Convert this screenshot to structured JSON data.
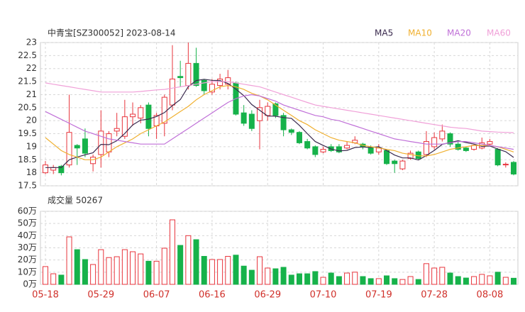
{
  "chart_data": {
    "type": "candlestick",
    "title": "中青宝[SZ300052] 2023-08-14",
    "categories": [
      "05-18",
      null,
      null,
      null,
      null,
      null,
      null,
      "05-29",
      null,
      null,
      null,
      null,
      null,
      null,
      "06-07",
      null,
      null,
      null,
      null,
      null,
      null,
      "06-16",
      null,
      null,
      null,
      null,
      null,
      null,
      "06-29",
      null,
      null,
      null,
      null,
      null,
      null,
      "07-10",
      null,
      null,
      null,
      null,
      null,
      null,
      "07-19",
      null,
      null,
      null,
      null,
      null,
      null,
      "07-28",
      null,
      null,
      null,
      null,
      null,
      null,
      "08-08",
      null,
      null,
      null
    ],
    "open": [
      18.0,
      18.1,
      18.25,
      18.3,
      19.05,
      19.3,
      18.35,
      18.7,
      18.8,
      19.6,
      19.4,
      20.15,
      20.1,
      20.6,
      19.8,
      19.9,
      20.6,
      21.7,
      21.35,
      22.2,
      21.55,
      21.1,
      21.35,
      21.4,
      21.45,
      20.3,
      20.25,
      20.0,
      20.2,
      20.65,
      20.2,
      19.65,
      19.55,
      19.2,
      19.0,
      18.8,
      19.0,
      19.0,
      18.95,
      19.15,
      19.1,
      18.95,
      18.8,
      18.85,
      18.45,
      18.15,
      18.55,
      18.8,
      18.7,
      19.0,
      19.3,
      19.5,
      19.1,
      18.95,
      18.9,
      18.95,
      19.1,
      18.9,
      18.3,
      18.4
    ],
    "high": [
      18.45,
      18.3,
      18.3,
      21.0,
      19.1,
      19.7,
      18.7,
      20.4,
      19.6,
      20.3,
      20.8,
      20.7,
      20.6,
      20.7,
      20.3,
      21.0,
      22.9,
      22.3,
      23.0,
      22.8,
      21.6,
      21.6,
      21.8,
      21.95,
      21.5,
      20.6,
      20.4,
      20.8,
      20.7,
      20.7,
      20.3,
      19.7,
      19.6,
      19.3,
      19.05,
      19.0,
      19.1,
      19.1,
      19.2,
      19.4,
      19.15,
      19.05,
      19.1,
      18.9,
      18.5,
      18.5,
      18.85,
      18.85,
      19.6,
      19.55,
      19.85,
      19.55,
      19.2,
      19.0,
      19.1,
      19.35,
      19.3,
      18.95,
      18.4,
      18.45
    ],
    "low": [
      17.95,
      17.95,
      17.9,
      18.2,
      18.3,
      18.6,
      18.05,
      18.2,
      18.6,
      19.4,
      19.3,
      19.8,
      19.9,
      19.4,
      19.3,
      19.4,
      20.4,
      21.3,
      21.2,
      21.3,
      21.0,
      21.0,
      21.2,
      21.2,
      20.2,
      19.8,
      19.6,
      18.9,
      20.0,
      20.1,
      19.4,
      19.45,
      19.1,
      18.9,
      18.6,
      18.75,
      18.8,
      18.75,
      18.9,
      19.1,
      18.9,
      18.7,
      18.7,
      18.3,
      18.0,
      18.1,
      18.5,
      18.5,
      18.6,
      18.9,
      19.2,
      19.0,
      18.85,
      18.8,
      18.85,
      18.9,
      19.05,
      18.25,
      18.2,
      17.9
    ],
    "close": [
      18.3,
      18.2,
      18.0,
      19.55,
      18.95,
      18.75,
      18.6,
      19.6,
      19.5,
      19.7,
      20.15,
      20.25,
      20.5,
      19.7,
      20.2,
      20.9,
      21.6,
      21.65,
      22.2,
      21.35,
      21.15,
      21.4,
      21.6,
      21.65,
      20.25,
      19.9,
      19.7,
      20.5,
      20.55,
      20.2,
      19.65,
      19.55,
      19.15,
      18.95,
      18.7,
      18.9,
      18.85,
      18.8,
      19.05,
      19.25,
      19.0,
      18.75,
      18.95,
      18.35,
      18.35,
      18.45,
      18.75,
      18.55,
      19.2,
      19.35,
      19.6,
      19.1,
      18.9,
      18.85,
      19.05,
      19.15,
      19.2,
      18.3,
      18.33,
      17.95
    ],
    "up_color": "#e8343c",
    "down_color": "#16b24a",
    "ylim": [
      17.5,
      23
    ],
    "yticks": [
      17.5,
      18,
      18.5,
      19,
      19.5,
      20,
      20.5,
      21,
      21.5,
      22,
      22.5,
      23
    ],
    "series": [
      {
        "name": "MA5",
        "color": "#3a2a4e",
        "values": [
          18.2,
          18.2,
          18.2,
          18.5,
          18.6,
          18.69,
          18.77,
          19.09,
          19.08,
          19.23,
          19.51,
          19.84,
          20.02,
          20.06,
          20.16,
          20.31,
          20.58,
          20.81,
          21.31,
          21.54,
          21.59,
          21.55,
          21.54,
          21.43,
          21.21,
          20.96,
          20.62,
          20.4,
          20.18,
          20.17,
          20.12,
          20.09,
          19.82,
          19.5,
          19.2,
          19.05,
          18.91,
          18.84,
          18.86,
          18.97,
          18.99,
          18.97,
          19.0,
          18.86,
          18.68,
          18.57,
          18.57,
          18.49,
          18.66,
          18.86,
          19.09,
          19.16,
          19.23,
          19.16,
          19.1,
          19.01,
          19.03,
          18.91,
          18.81,
          18.59
        ]
      },
      {
        "name": "MA10",
        "color": "#f0b030",
        "values": [
          19.35,
          19.1,
          18.85,
          18.7,
          18.6,
          18.5,
          18.5,
          18.6,
          18.8,
          19.0,
          19.15,
          19.3,
          19.5,
          19.65,
          19.8,
          19.95,
          20.15,
          20.35,
          20.55,
          20.8,
          21.0,
          21.15,
          21.3,
          21.35,
          21.3,
          21.2,
          21.05,
          20.95,
          20.8,
          20.6,
          20.4,
          20.2,
          20.0,
          19.85,
          19.65,
          19.5,
          19.35,
          19.25,
          19.2,
          19.15,
          19.05,
          19.0,
          18.95,
          18.9,
          18.85,
          18.75,
          18.7,
          18.65,
          18.65,
          18.7,
          18.8,
          18.9,
          18.95,
          19.0,
          19.05,
          19.05,
          19.05,
          19.0,
          18.9,
          18.8
        ]
      },
      {
        "name": "MA20",
        "color": "#c070d8",
        "values": [
          20.35,
          20.2,
          20.05,
          19.9,
          19.75,
          19.6,
          19.5,
          19.4,
          19.3,
          19.25,
          19.2,
          19.15,
          19.1,
          19.1,
          19.1,
          19.1,
          19.3,
          19.5,
          19.7,
          19.9,
          20.1,
          20.3,
          20.5,
          20.7,
          20.85,
          20.95,
          21.0,
          20.95,
          20.85,
          20.75,
          20.6,
          20.5,
          20.4,
          20.3,
          20.2,
          20.15,
          20.05,
          20.0,
          19.9,
          19.8,
          19.7,
          19.6,
          19.5,
          19.4,
          19.3,
          19.25,
          19.2,
          19.15,
          19.1,
          19.1,
          19.1,
          19.15,
          19.2,
          19.2,
          19.15,
          19.1,
          19.05,
          19.0,
          18.95,
          18.9
        ]
      },
      {
        "name": "MA60",
        "color": "#f0a0d8",
        "values": [
          21.45,
          21.4,
          21.35,
          21.3,
          21.25,
          21.2,
          21.15,
          21.1,
          21.1,
          21.1,
          21.1,
          21.1,
          21.12,
          21.15,
          21.18,
          21.2,
          21.25,
          21.3,
          21.35,
          21.4,
          21.45,
          21.5,
          21.5,
          21.5,
          21.45,
          21.4,
          21.35,
          21.3,
          21.2,
          21.1,
          21.0,
          20.9,
          20.8,
          20.7,
          20.6,
          20.55,
          20.5,
          20.45,
          20.4,
          20.35,
          20.3,
          20.25,
          20.2,
          20.15,
          20.1,
          20.05,
          20.0,
          19.95,
          19.9,
          19.85,
          19.8,
          19.75,
          19.72,
          19.7,
          19.65,
          19.6,
          19.58,
          19.56,
          19.55,
          19.54
        ]
      }
    ],
    "volume": {
      "title": "成交量 50267",
      "values": [
        14.6,
        8.7,
        7.6,
        39,
        28.5,
        20.4,
        16.3,
        28.5,
        22,
        22.7,
        28.5,
        26.8,
        25,
        19,
        19,
        29.7,
        53,
        32,
        40,
        36.7,
        23,
        20.4,
        20.4,
        23,
        24,
        15,
        11.6,
        22.7,
        13.4,
        12.8,
        14,
        7.6,
        8.7,
        8.7,
        10.5,
        5.8,
        9.3,
        6.4,
        9.3,
        10,
        6.4,
        4.7,
        4.7,
        7,
        4.7,
        4,
        6.4,
        4,
        17,
        13.4,
        14,
        9.3,
        6.4,
        5.2,
        6.4,
        8.2,
        7,
        10,
        5.8,
        5.03
      ],
      "ylim": [
        0,
        60
      ],
      "yticks": [
        {
          "value": 0,
          "label": "0万"
        },
        {
          "value": 10,
          "label": "10万"
        },
        {
          "value": 20,
          "label": "20万"
        },
        {
          "value": 30,
          "label": "30万"
        },
        {
          "value": 40,
          "label": "40万"
        },
        {
          "value": 50,
          "label": "50万"
        },
        {
          "value": 60,
          "label": "60万"
        }
      ]
    }
  }
}
